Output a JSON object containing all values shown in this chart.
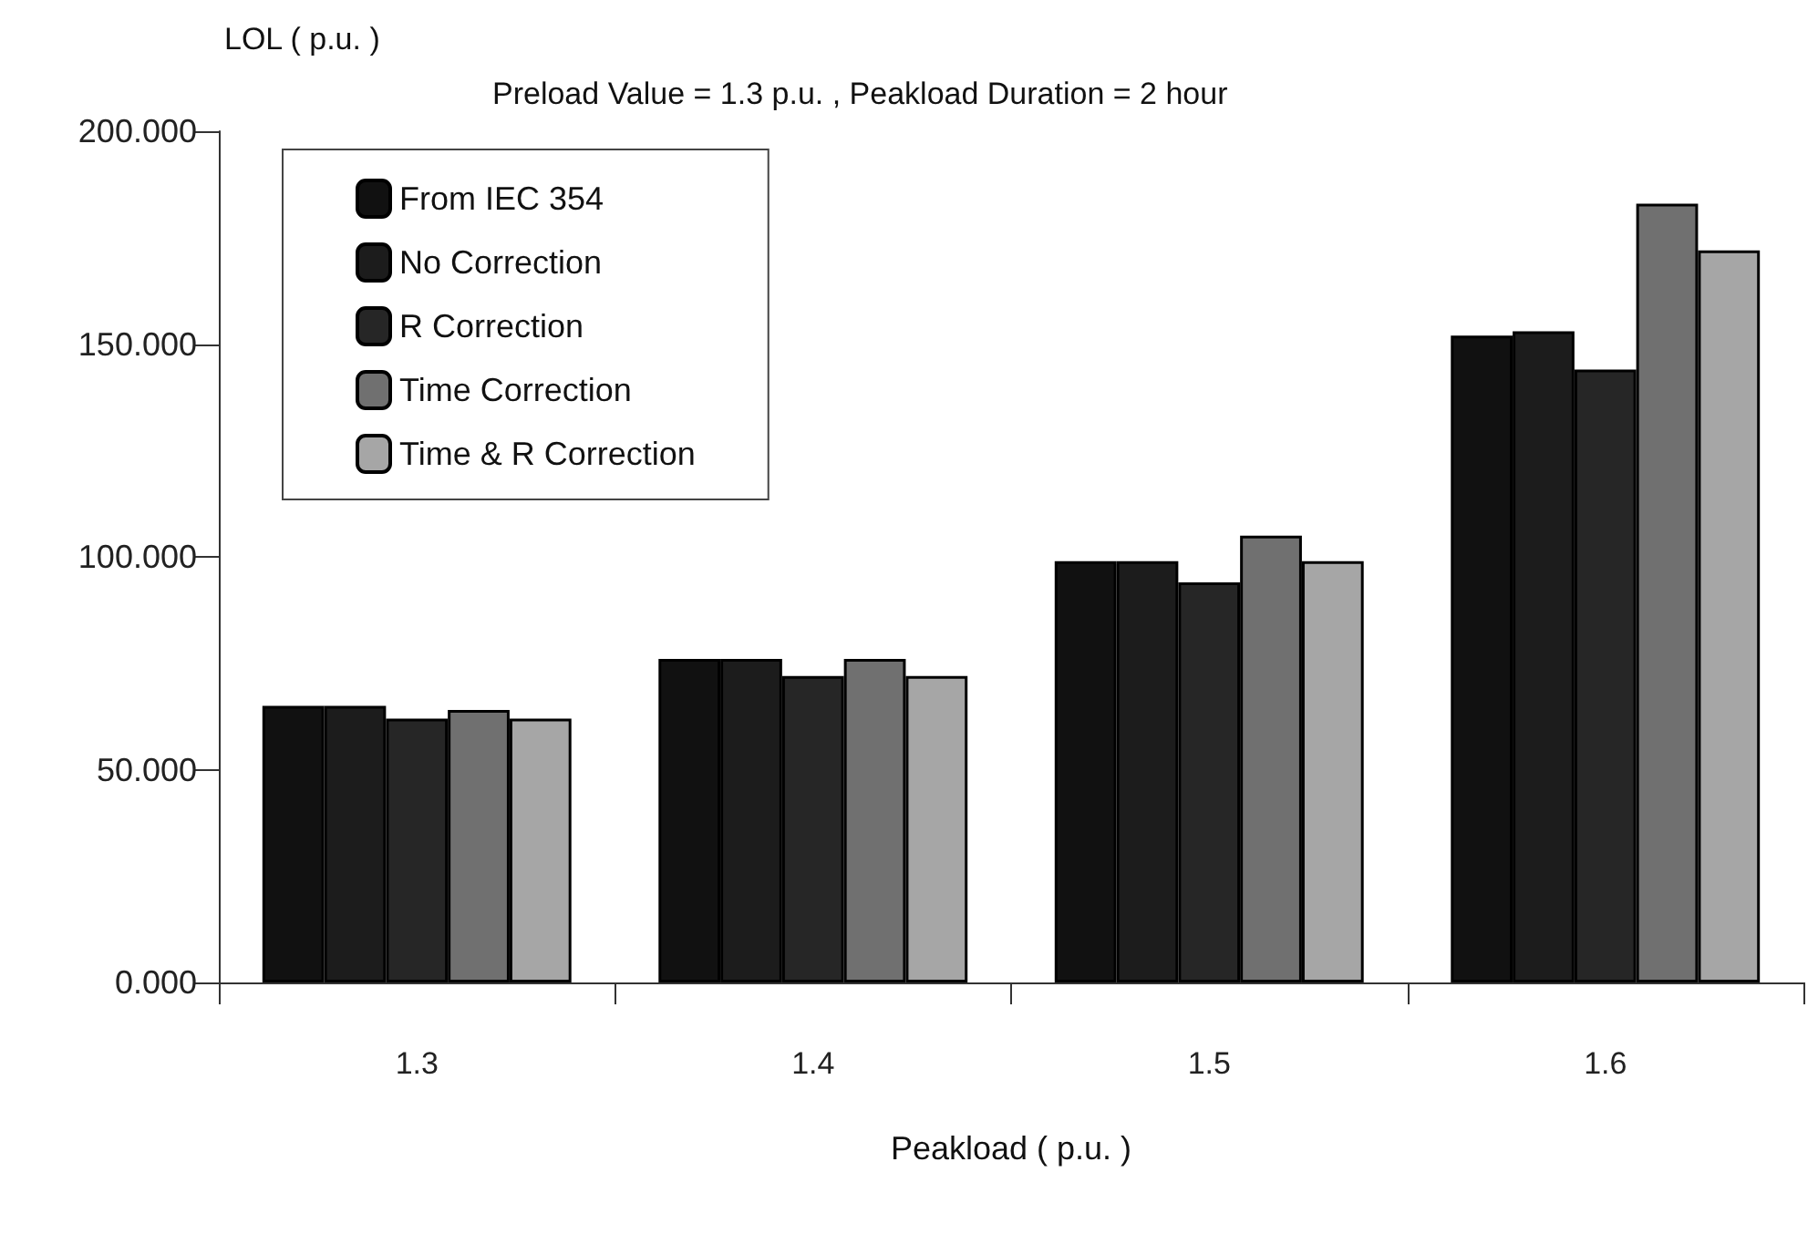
{
  "chart_data": {
    "type": "bar",
    "title": "Preload Value = 1.3 p.u. , Peakload Duration = 2 hour",
    "xlabel": "Peakload ( p.u. )",
    "ylabel": "LOL ( p.u. )",
    "categories": [
      "1.3",
      "1.4",
      "1.5",
      "1.6"
    ],
    "series": [
      {
        "name": "From IEC 354",
        "color": "#111111",
        "values": [
          65,
          76,
          99,
          152
        ]
      },
      {
        "name": "No Correction",
        "color": "#1c1c1c",
        "values": [
          65,
          76,
          99,
          153
        ]
      },
      {
        "name": "R Correction",
        "color": "#262626",
        "values": [
          62,
          72,
          94,
          144
        ]
      },
      {
        "name": "Time Correction",
        "color": "#707070",
        "values": [
          64,
          76,
          105,
          183
        ]
      },
      {
        "name": "Time & R Correction",
        "color": "#a6a6a6",
        "values": [
          62,
          72,
          99,
          172
        ]
      }
    ],
    "ylim": [
      0,
      200
    ],
    "yticks": [
      {
        "value": 0,
        "label": "0.000"
      },
      {
        "value": 50,
        "label": "50.000"
      },
      {
        "value": 100,
        "label": "100.000"
      },
      {
        "value": 150,
        "label": "150.000"
      },
      {
        "value": 200,
        "label": "200.000"
      }
    ],
    "legend": "top left",
    "grid": false
  }
}
